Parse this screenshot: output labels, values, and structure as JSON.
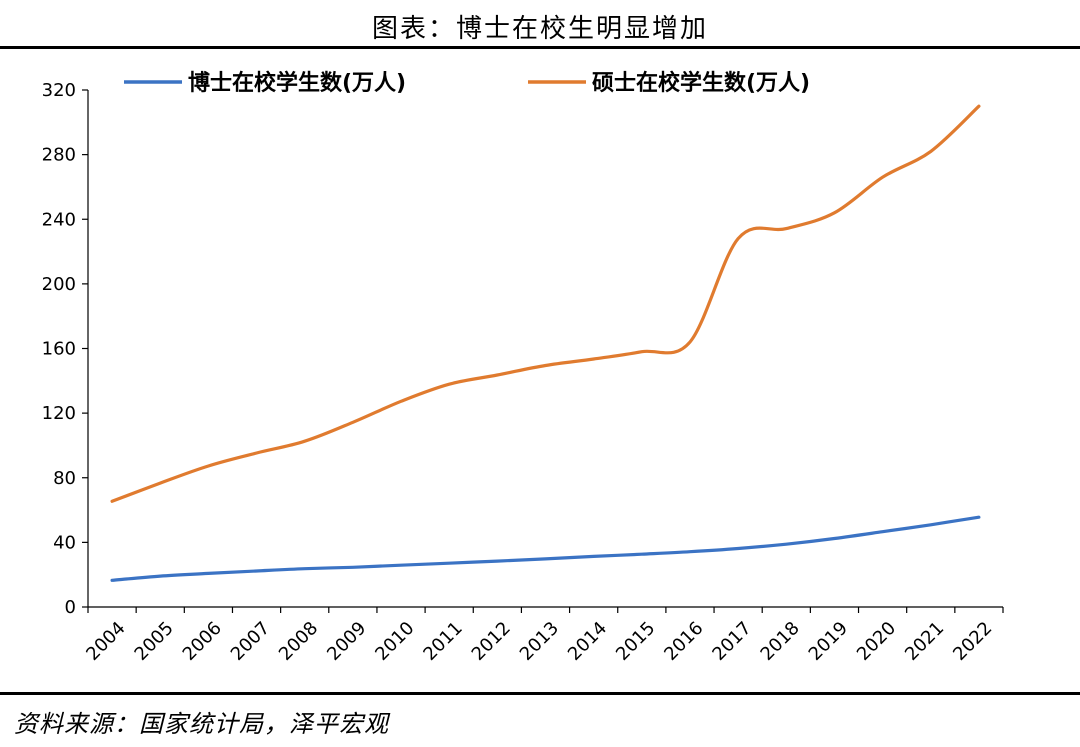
{
  "title": "图表：博士在校生明显增加",
  "source": "资料来源：国家统计局，泽平宏观",
  "chart_data": {
    "type": "line",
    "x": [
      "2004",
      "2005",
      "2006",
      "2007",
      "2008",
      "2009",
      "2010",
      "2011",
      "2012",
      "2013",
      "2014",
      "2015",
      "2016",
      "2017",
      "2018",
      "2019",
      "2020",
      "2021",
      "2022"
    ],
    "series": [
      {
        "name": "博士在校学生数(万人)",
        "color": "#3b73c4",
        "values": [
          16.5,
          19.1,
          20.8,
          22.3,
          23.7,
          24.6,
          25.9,
          27.1,
          28.4,
          29.8,
          31.3,
          32.7,
          34.2,
          36.2,
          38.9,
          42.4,
          46.6,
          50.9,
          55.6
        ]
      },
      {
        "name": "硕士在校学生数(万人)",
        "color": "#e07b2f",
        "values": [
          65.4,
          76.7,
          87.3,
          95.3,
          102.6,
          114.3,
          127.3,
          137.9,
          143.6,
          149.5,
          153.5,
          158.0,
          164.0,
          228.0,
          234.2,
          244.0,
          266.0,
          282.0,
          310.0
        ]
      }
    ],
    "ylim": [
      0,
      320
    ],
    "yticks": [
      0,
      40,
      80,
      120,
      160,
      200,
      240,
      280,
      320
    ],
    "grid": false,
    "legend": "top"
  }
}
